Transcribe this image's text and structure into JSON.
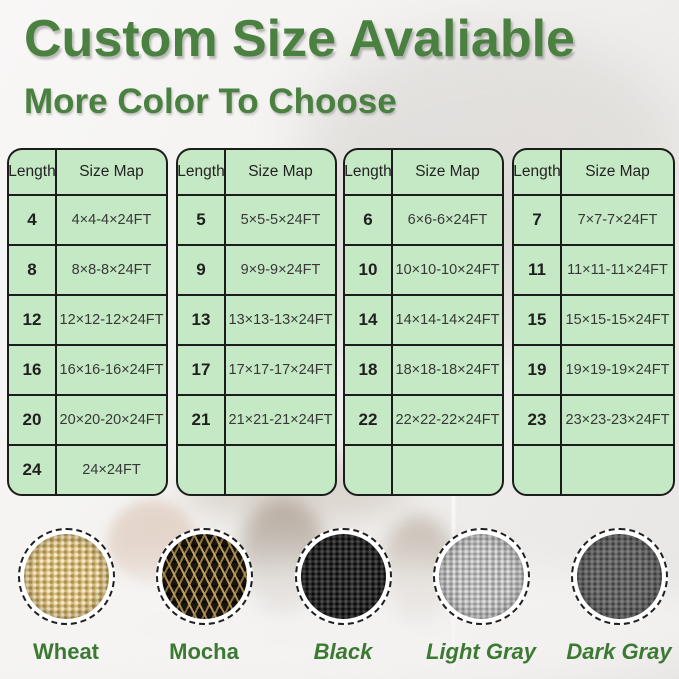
{
  "header": {
    "title": "Custom Size Avaliable",
    "subtitle": "More Color To Choose"
  },
  "table": {
    "columns": [
      "Length",
      "Size Map"
    ]
  },
  "tables": [
    {
      "rows": [
        [
          "4",
          "4×4-4×24FT"
        ],
        [
          "8",
          "8×8-8×24FT"
        ],
        [
          "12",
          "12×12-12×24FT"
        ],
        [
          "16",
          "16×16-16×24FT"
        ],
        [
          "20",
          "20×20-20×24FT"
        ],
        [
          "24",
          "24×24FT"
        ]
      ]
    },
    {
      "rows": [
        [
          "5",
          "5×5-5×24FT"
        ],
        [
          "9",
          "9×9-9×24FT"
        ],
        [
          "13",
          "13×13-13×24FT"
        ],
        [
          "17",
          "17×17-17×24FT"
        ],
        [
          "21",
          "21×21-21×24FT"
        ],
        [
          "",
          ""
        ]
      ]
    },
    {
      "rows": [
        [
          "6",
          "6×6-6×24FT"
        ],
        [
          "10",
          "10×10-10×24FT"
        ],
        [
          "14",
          "14×14-14×24FT"
        ],
        [
          "18",
          "18×18-18×24FT"
        ],
        [
          "22",
          "22×22-22×24FT"
        ],
        [
          "",
          ""
        ]
      ]
    },
    {
      "rows": [
        [
          "7",
          "7×7-7×24FT"
        ],
        [
          "11",
          "11×11-11×24FT"
        ],
        [
          "15",
          "15×15-15×24FT"
        ],
        [
          "19",
          "19×19-19×24FT"
        ],
        [
          "23",
          "23×23-23×24FT"
        ],
        [
          "",
          ""
        ]
      ]
    }
  ],
  "swatches": [
    {
      "name": "Wheat",
      "texture": "wheat",
      "italic": false,
      "base_color": "#d8bd80"
    },
    {
      "name": "Mocha",
      "texture": "mocha",
      "italic": false,
      "base_color": "#1a150f"
    },
    {
      "name": "Black",
      "texture": "black",
      "italic": true,
      "base_color": "#2c2c2c"
    },
    {
      "name": "Light Gray",
      "texture": "light-gray",
      "italic": true,
      "base_color": "#b7b7b7"
    },
    {
      "name": "Dark Gray",
      "texture": "dark-gray",
      "italic": true,
      "base_color": "#676767"
    }
  ],
  "colors": {
    "title_green": "#4a8140",
    "label_green": "#3c7a33",
    "table_bg": "#c6e9c5",
    "border_dark": "#1c1c1c"
  }
}
